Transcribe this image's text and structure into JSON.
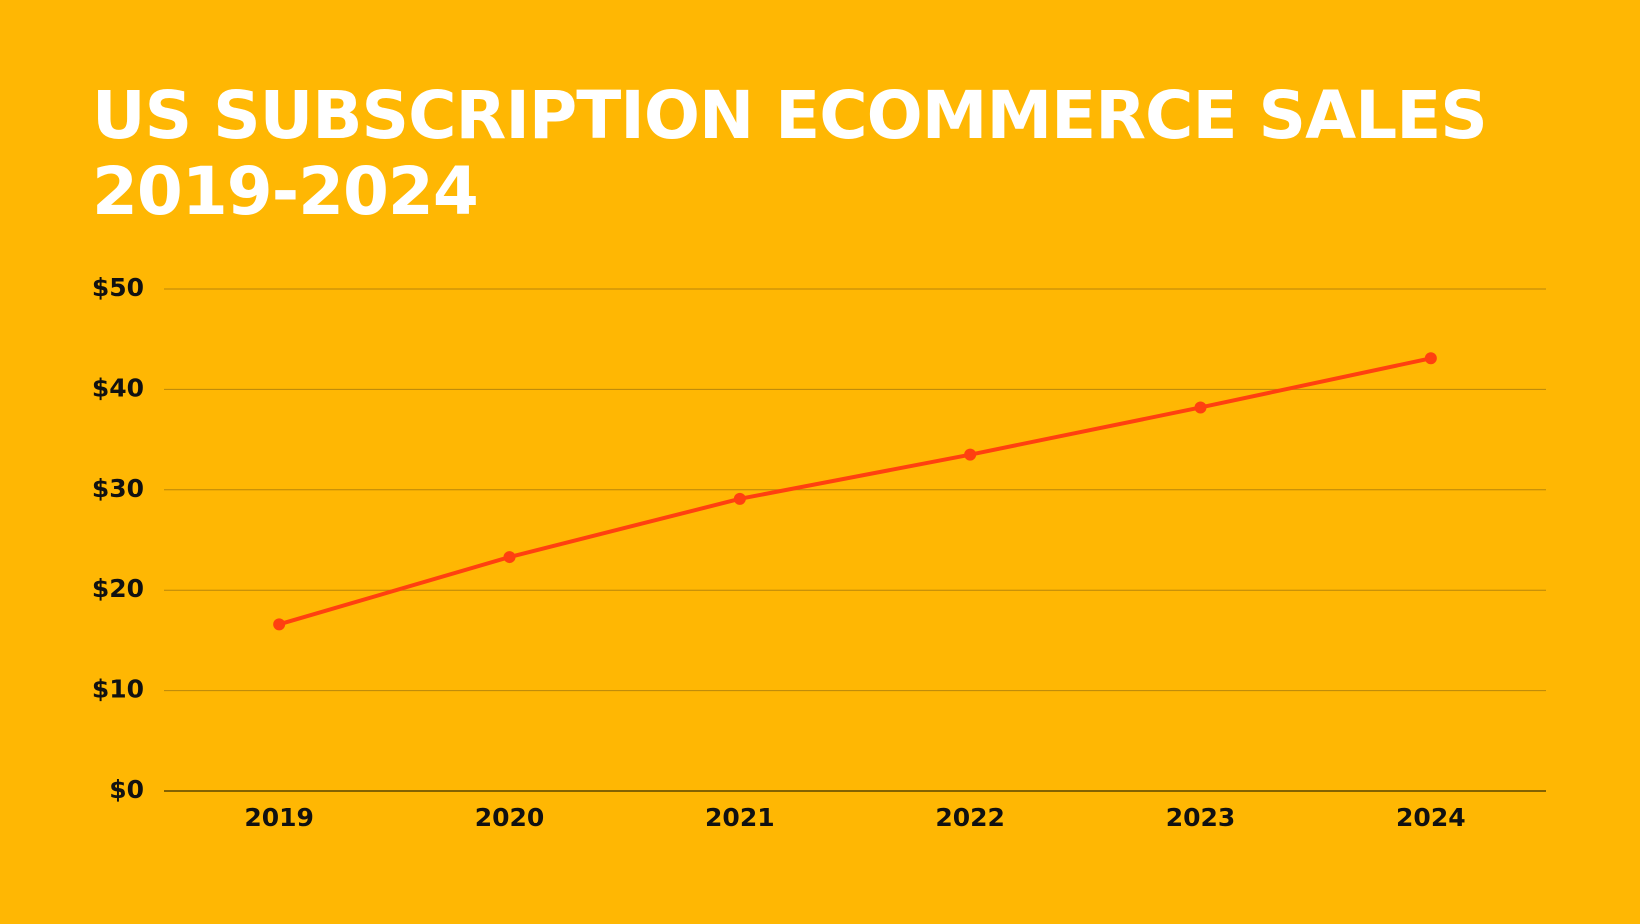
{
  "chart_data": {
    "type": "line",
    "title": "US SUBSCRIPTION ECOMMERCE SALES 2019-2024",
    "categories": [
      "2019",
      "2020",
      "2021",
      "2022",
      "2023",
      "2024"
    ],
    "series": [
      {
        "name": "US subscription ecommerce sales",
        "color": "#FF4010",
        "values": [
          16.6,
          23.3,
          29.1,
          33.5,
          38.2,
          43.1
        ]
      }
    ],
    "ylim": [
      0,
      50
    ],
    "yticks": [
      {
        "value": 0,
        "label": "$0"
      },
      {
        "value": 10,
        "label": "$10"
      },
      {
        "value": 20,
        "label": "$20"
      },
      {
        "value": 30,
        "label": "$30"
      },
      {
        "value": 40,
        "label": "$40"
      },
      {
        "value": 50,
        "label": "$50"
      }
    ],
    "grid": true
  }
}
